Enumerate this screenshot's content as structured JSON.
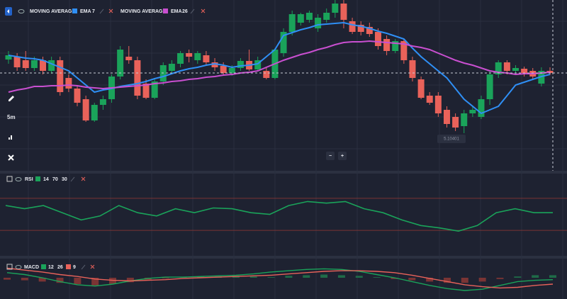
{
  "toolbar": {
    "interval": "5m",
    "zoom_out": "−",
    "zoom_in": "+"
  },
  "chart_data": [
    {
      "type": "candlestick",
      "ylim": [
        0,
        240
      ],
      "up_color": "#1aa35a",
      "down_color": "#e9625a",
      "price_label": "5.10401",
      "open": [
        156,
        160,
        155,
        144,
        155,
        140,
        155,
        130,
        115,
        100,
        70,
        92,
        100,
        132,
        160,
        155,
        122,
        102,
        125,
        140,
        150,
        165,
        155,
        162,
        152,
        147,
        137,
        144,
        154,
        142,
        140,
        130,
        165,
        195,
        208,
        212,
        200,
        212,
        222,
        235,
        210,
        205,
        202,
        195,
        185,
        168,
        182,
        155,
        128,
        105,
        105,
        85,
        75,
        62,
        80,
        75,
        100,
        135,
        152,
        140,
        143,
        140,
        122,
        140
      ],
      "close": [
        162,
        145,
        144,
        155,
        140,
        155,
        110,
        115,
        95,
        70,
        92,
        100,
        132,
        170,
        155,
        105,
        102,
        125,
        148,
        150,
        165,
        160,
        165,
        152,
        145,
        137,
        144,
        154,
        142,
        155,
        130,
        170,
        195,
        220,
        220,
        222,
        215,
        222,
        235,
        212,
        195,
        195,
        192,
        175,
        168,
        182,
        155,
        130,
        102,
        95,
        80,
        65,
        60,
        80,
        85,
        100,
        135,
        152,
        140,
        144,
        137,
        132,
        140,
        137
      ],
      "high": [
        168,
        165,
        168,
        160,
        160,
        160,
        160,
        135,
        120,
        105,
        95,
        105,
        135,
        175,
        175,
        160,
        128,
        130,
        152,
        155,
        168,
        170,
        168,
        168,
        158,
        152,
        148,
        158,
        170,
        160,
        145,
        172,
        200,
        225,
        222,
        225,
        220,
        228,
        240,
        240,
        215,
        210,
        208,
        200,
        190,
        185,
        185,
        160,
        132,
        110,
        110,
        90,
        80,
        85,
        90,
        105,
        140,
        155,
        155,
        148,
        146,
        144,
        145,
        145
      ],
      "low": [
        150,
        140,
        140,
        140,
        135,
        136,
        105,
        110,
        90,
        68,
        68,
        85,
        95,
        128,
        150,
        100,
        100,
        100,
        120,
        135,
        145,
        152,
        150,
        148,
        140,
        134,
        133,
        140,
        140,
        140,
        128,
        128,
        160,
        190,
        204,
        208,
        195,
        208,
        215,
        200,
        192,
        190,
        188,
        170,
        162,
        165,
        150,
        125,
        100,
        92,
        75,
        60,
        55,
        52,
        75,
        72,
        92,
        130,
        135,
        136,
        132,
        128,
        118,
        134
      ],
      "series": [
        {
          "label": "MOVING AVERAGE",
          "name": "EMA",
          "period": 7,
          "color": "#2f8ff5",
          "values": [
            162,
            160,
            158,
            157,
            155,
            150,
            145,
            140,
            130,
            120,
            110,
            113,
            115,
            118,
            120,
            122,
            125,
            129,
            132,
            136,
            140,
            143,
            145,
            148,
            150,
            148,
            145,
            147,
            148,
            150,
            160,
            170,
            190,
            194,
            198,
            201,
            205,
            206,
            207,
            208,
            205,
            203,
            200,
            196,
            193,
            189,
            185,
            172,
            160,
            150,
            140,
            130,
            115,
            100,
            90,
            80,
            85,
            90,
            105,
            120,
            124,
            128,
            132,
            135
          ]
        },
        {
          "label": "MOVING AVERAGE",
          "name": "EMA",
          "period": 26,
          "color": "#c94fd0",
          "values": [
            110,
            113,
            115,
            118,
            118,
            119,
            119,
            120,
            119,
            117,
            116,
            115,
            116,
            117,
            118,
            119,
            120,
            122,
            123,
            125,
            126,
            128,
            129,
            131,
            132,
            134,
            135,
            137,
            138,
            140,
            145,
            150,
            155,
            159,
            163,
            166,
            170,
            173,
            177,
            180,
            181,
            181,
            182,
            181,
            180,
            179,
            178,
            175,
            173,
            170,
            165,
            160,
            155,
            151,
            148,
            144,
            140,
            138,
            137,
            135,
            136,
            136,
            137,
            138
          ]
        }
      ]
    },
    {
      "type": "line",
      "name": "RSI",
      "color": "#1aa35a",
      "params": [
        14,
        70,
        30
      ],
      "ylim": [
        0,
        100
      ],
      "values": [
        61,
        57,
        61,
        52,
        43,
        48,
        61,
        52,
        48,
        57,
        52,
        58,
        57,
        52,
        50,
        61,
        66,
        64,
        66,
        57,
        52,
        43,
        36,
        33,
        29,
        36,
        52,
        57,
        52,
        52
      ]
    },
    {
      "type": "macd",
      "name": "MACD",
      "params": [
        12,
        26,
        9
      ],
      "ylim": [
        -30,
        30
      ],
      "hist_up": "#1f6b48",
      "hist_down": "#7a3434",
      "histogram": [
        -3,
        -4,
        -6,
        -8,
        -10,
        -12,
        -10,
        -7,
        -3,
        -1,
        1,
        2,
        2,
        3,
        2,
        1,
        3,
        4,
        5,
        4,
        3,
        1,
        -2,
        -4,
        -6,
        -8,
        -8,
        -6,
        -2,
        2,
        4,
        4
      ],
      "series": [
        {
          "color": "#1aa35a",
          "values": [
            8,
            5,
            0,
            -6,
            -11,
            -13,
            -10,
            -5,
            -1,
            1,
            1,
            2,
            3,
            4,
            6,
            9,
            11,
            13,
            14,
            13,
            10,
            5,
            0,
            -6,
            -12,
            -17,
            -20,
            -18,
            -12,
            -6,
            -4,
            -3
          ]
        },
        {
          "color": "#e9625a",
          "values": [
            15,
            12,
            9,
            5,
            2,
            -2,
            -4,
            -5,
            -4,
            -3,
            -1,
            0,
            1,
            2,
            3,
            4,
            6,
            8,
            10,
            11,
            11,
            10,
            8,
            4,
            -1,
            -6,
            -11,
            -14,
            -16,
            -15,
            -12,
            -10
          ]
        }
      ]
    }
  ]
}
